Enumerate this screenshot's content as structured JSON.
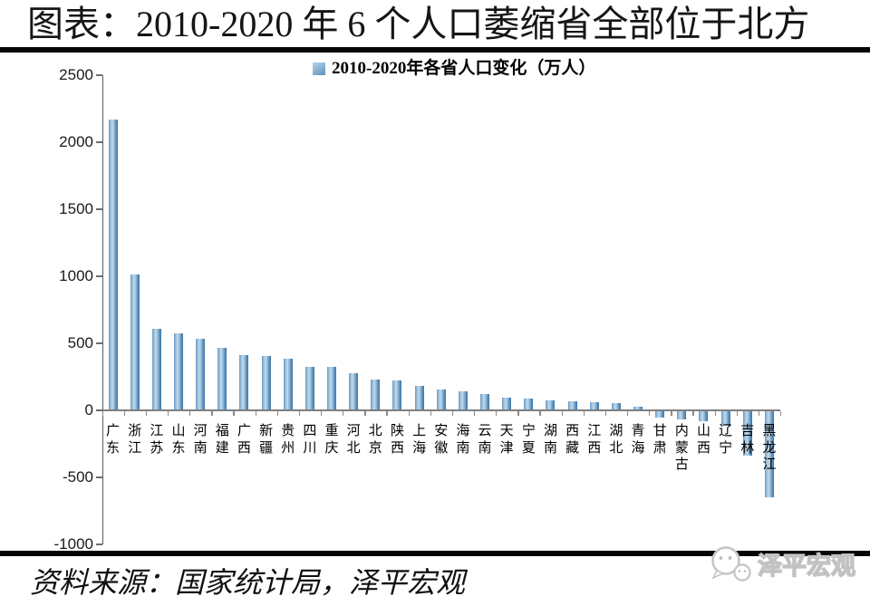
{
  "page": {
    "title": "图表：2010-2020 年 6 个人口萎缩省全部位于北方",
    "source_note": "资料来源：国家统计局，泽平宏观",
    "watermark_text": "泽平宏观"
  },
  "colors": {
    "divider": "#050505",
    "axis_line": "#5a5a5a",
    "baseline": "#7f7f7f",
    "bar_gradient": [
      "#6697c3",
      "#9fc2dc",
      "#c0d9ea",
      "#8fb6d6",
      "#4b83b0",
      "#437aa6"
    ],
    "legend_marker_from": "#b8d3e8",
    "legend_marker_to": "#5b92bf",
    "watermark_gray": "#c5c5c5"
  },
  "chart_data": {
    "type": "bar",
    "title": "2010-2020年各省人口变化（万人）",
    "unit": "万人",
    "xlabel": "",
    "ylabel": "",
    "ylim": [
      -1000,
      2500
    ],
    "yticks": [
      2500,
      2000,
      1500,
      1000,
      500,
      0,
      -500,
      -1000
    ],
    "grid": false,
    "legend_position": "top-center",
    "categories": [
      "广东",
      "浙江",
      "江苏",
      "山东",
      "河南",
      "福建",
      "广西",
      "新疆",
      "贵州",
      "四川",
      "重庆",
      "河北",
      "北京",
      "陕西",
      "上海",
      "安徽",
      "海南",
      "云南",
      "天津",
      "宁夏",
      "湖南",
      "西藏",
      "江西",
      "湖北",
      "青海",
      "甘肃",
      "内蒙古",
      "山西",
      "辽宁",
      "吉林",
      "黑龙江"
    ],
    "values": [
      2171,
      1014,
      609,
      573,
      534,
      465,
      410,
      404,
      382,
      326,
      321,
      276,
      228,
      220,
      185,
      153,
      141,
      124,
      93,
      90,
      76,
      65,
      62,
      52,
      30,
      -56,
      -66,
      -80,
      -116,
      -339,
      -646
    ]
  }
}
